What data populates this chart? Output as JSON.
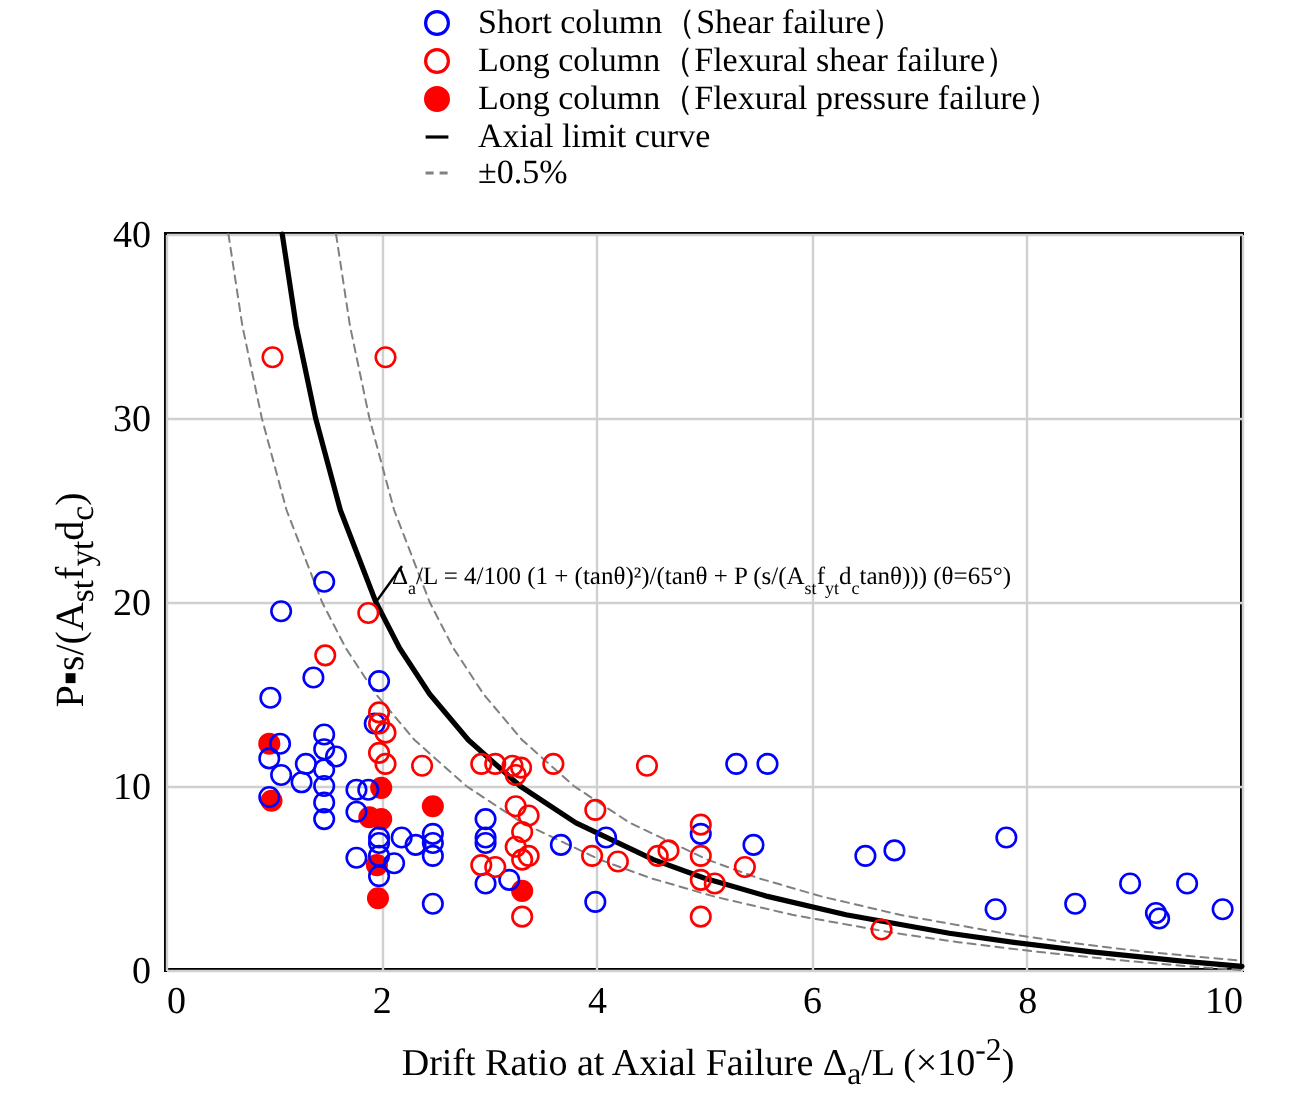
{
  "chart_data": {
    "type": "scatter",
    "xlabel": "Drift Ratio at Axial Failure Δ$_{a}$/L (×10$^{-2}$)",
    "ylabel": "P▪s/(A$_{st}$f$_{yt}$d$_{c}$)",
    "xlim": [
      0,
      10
    ],
    "ylim": [
      0,
      40
    ],
    "xticks": [
      0,
      2,
      4,
      6,
      8,
      10
    ],
    "yticks": [
      0,
      10,
      20,
      30,
      40
    ],
    "grid": true,
    "legend": "top",
    "annotations": [
      "Δ$_{a}$/L = 4/100 (1 + (tanθ)²)/(tanθ + P (s/(A$_{st}$f$_{yt}$d$_{c}$tanθ))) (θ=65°)"
    ],
    "series": [
      {
        "name": "Short column（Shear failure）",
        "color": "#0000ff",
        "marker": "circle",
        "x": [
          1.47,
          1.07,
          1.37,
          0.97,
          1.98,
          1.94,
          1.06,
          1.47,
          1.47,
          0.96,
          1.58,
          1.3,
          1.07,
          1.26,
          1.47,
          1.47,
          1.47,
          1.47,
          0.96,
          1.77,
          1.88,
          1.77,
          1.98,
          1.98,
          1.98,
          1.98,
          2.19,
          2.32,
          2.48,
          2.48,
          2.48,
          1.77,
          2.12,
          2.48,
          2.97,
          2.97,
          2.97,
          2.97,
          3.19,
          3.67,
          4.09,
          3.99,
          4.97,
          5.3,
          5.59,
          5.46,
          6.5,
          6.77,
          7.81,
          7.71,
          8.45,
          8.96,
          9.2,
          9.23,
          9.49,
          9.82
        ],
        "values": [
          21.1,
          19.5,
          15.9,
          14.8,
          15.7,
          13.4,
          12.3,
          12.8,
          12.0,
          11.5,
          11.6,
          11.2,
          10.6,
          10.2,
          10.9,
          10.0,
          9.1,
          8.2,
          9.4,
          9.8,
          9.8,
          8.6,
          7.2,
          6.9,
          6.2,
          5.1,
          7.2,
          6.8,
          7.4,
          6.9,
          6.2,
          6.1,
          5.8,
          3.6,
          8.2,
          7.2,
          6.9,
          4.7,
          4.9,
          6.8,
          7.2,
          3.7,
          7.4,
          11.2,
          11.2,
          6.8,
          6.2,
          6.5,
          7.2,
          3.3,
          3.6,
          4.7,
          3.1,
          2.8,
          4.7,
          3.3
        ]
      },
      {
        "name": "Long column（Flexural shear failure）",
        "color": "#ff0000",
        "marker": "circle",
        "x": [
          0.99,
          2.04,
          1.88,
          1.48,
          1.98,
          1.98,
          2.04,
          1.98,
          2.04,
          2.38,
          2.93,
          3.06,
          3.22,
          3.3,
          3.25,
          3.6,
          3.25,
          3.37,
          3.31,
          3.25,
          3.37,
          3.31,
          2.93,
          3.06,
          3.31,
          4.47,
          3.99,
          3.96,
          4.2,
          4.57,
          4.67,
          4.97,
          4.97,
          4.97,
          5.1,
          5.38,
          4.97,
          6.65
        ],
        "values": [
          33.3,
          33.3,
          19.4,
          17.1,
          14.0,
          13.4,
          12.9,
          11.8,
          11.2,
          11.1,
          11.2,
          11.2,
          11.1,
          11.0,
          10.6,
          11.2,
          8.9,
          8.4,
          7.5,
          6.7,
          6.2,
          6.0,
          5.7,
          5.6,
          2.9,
          11.1,
          8.7,
          6.2,
          5.9,
          6.2,
          6.5,
          7.9,
          6.2,
          4.9,
          4.7,
          5.6,
          2.9,
          2.2
        ]
      },
      {
        "name": "Long column（Flexural pressure failure）",
        "color": "#ff0000",
        "marker": "circle",
        "x": [
          0.96,
          0.98,
          2.0,
          1.89,
          2.0,
          1.96,
          1.97,
          2.48,
          3.31
        ],
        "values": [
          12.3,
          9.2,
          9.9,
          8.3,
          8.2,
          5.7,
          3.9,
          8.9,
          4.3
        ]
      },
      {
        "name": "Axial limit curve",
        "type": "line",
        "color": "#000000",
        "line_style": "solid",
        "x": [
          1.08,
          1.21,
          1.39,
          1.62,
          1.95,
          2.17,
          2.45,
          2.81,
          3.29,
          3.81,
          4.53,
          5.0,
          5.59,
          6.32,
          7.28,
          7.88,
          8.58,
          9.42,
          10
        ],
        "values": [
          40,
          35,
          30,
          25,
          20,
          17.5,
          15,
          12.5,
          10,
          8,
          6,
          5,
          4,
          3,
          2,
          1.5,
          1,
          0.5,
          0.2
        ]
      },
      {
        "name": "±0.5%",
        "type": "line",
        "color": "#808080",
        "line_style": "dashed",
        "x": [
          0.58,
          0.71,
          0.89,
          1.12,
          1.45,
          1.67,
          1.95,
          2.31,
          2.79,
          3.31,
          4.03,
          4.5,
          5.09,
          5.82,
          6.78,
          7.38,
          8.08,
          8.92,
          9.5,
          10
        ],
        "values": [
          40,
          35,
          30,
          25,
          20,
          17.5,
          15,
          12.5,
          10,
          8,
          6,
          5,
          4,
          3,
          2,
          1.5,
          1,
          0.5,
          0.2,
          0
        ]
      },
      {
        "type": "line",
        "color": "#808080",
        "line_style": "dashed",
        "x": [
          1.58,
          1.71,
          1.89,
          2.12,
          2.45,
          2.67,
          2.95,
          3.31,
          3.79,
          4.31,
          5.03,
          5.5,
          6.09,
          6.82,
          7.78,
          8.38,
          9.08,
          10
        ],
        "values": [
          40,
          35,
          30,
          25,
          20,
          17.5,
          15,
          12.5,
          10,
          8,
          6,
          5,
          4,
          3,
          2,
          1.5,
          1,
          0.5
        ]
      }
    ]
  }
}
